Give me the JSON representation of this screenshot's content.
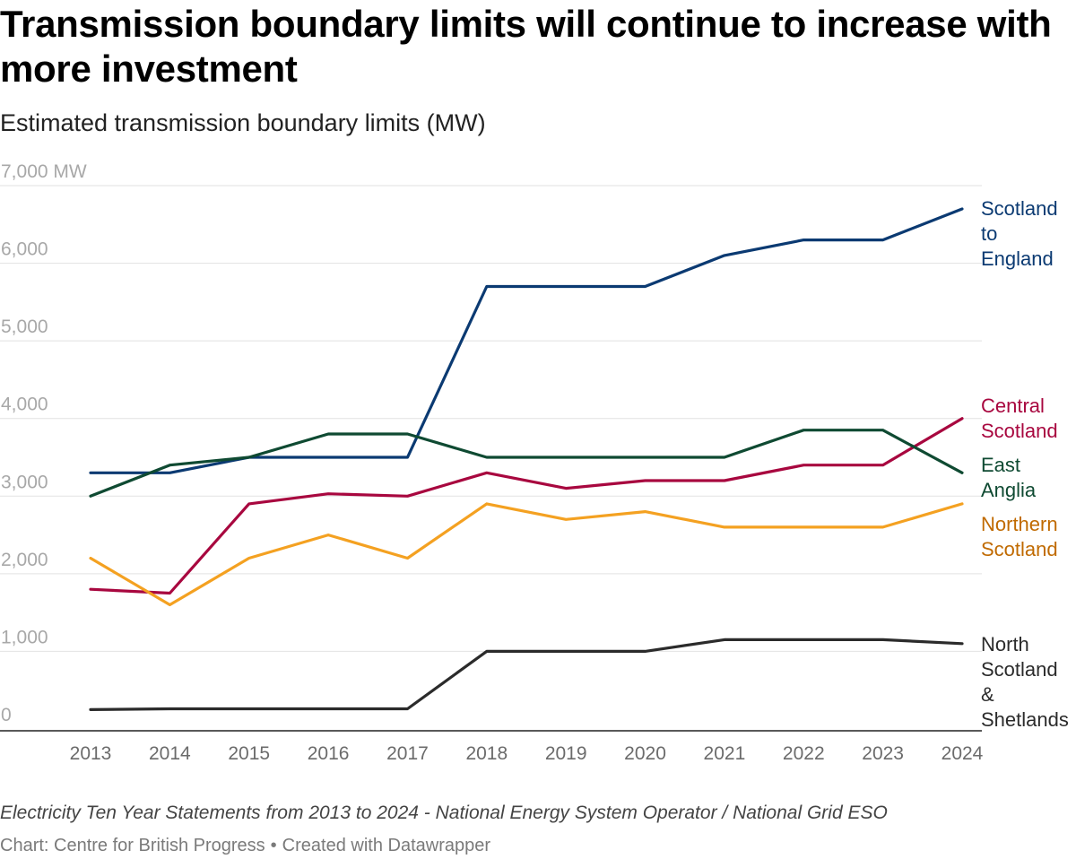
{
  "title": "Transmission boundary limits will continue to increase with more investment",
  "subtitle": "Estimated transmission boundary limits (MW)",
  "footer": {
    "source": "Electricity Ten Year Statements from 2013 to 2024 - National Energy System Operator / National Grid ESO",
    "credit_chart": "Chart: Centre for British Progress",
    "credit_separator": "•",
    "credit_tool": "Created with Datawrapper"
  },
  "chart_data": {
    "type": "line",
    "title": "Transmission boundary limits will continue to increase with more investment",
    "subtitle": "Estimated transmission boundary limits (MW)",
    "xlabel": "",
    "ylabel": "",
    "x": [
      "2013",
      "2014",
      "2015",
      "2016",
      "2017",
      "2018",
      "2019",
      "2020",
      "2021",
      "2022",
      "2023",
      "2024"
    ],
    "ylim": [
      0,
      7000
    ],
    "yticks": [
      0,
      1000,
      2000,
      3000,
      4000,
      5000,
      6000,
      7000
    ],
    "ytick_labels": [
      "0",
      "1,000",
      "2,000",
      "3,000",
      "4,000",
      "5,000",
      "6,000",
      "7,000 MW"
    ],
    "grid": true,
    "legend": "direct labels at right end of lines",
    "series": [
      {
        "name": "Scotland to England",
        "label_lines": [
          "Scotland",
          "to",
          "England"
        ],
        "color": "#0b3a72",
        "values": [
          3300,
          3300,
          3500,
          3500,
          3500,
          5700,
          5700,
          5700,
          6100,
          6300,
          6300,
          6700
        ]
      },
      {
        "name": "Central Scotland",
        "label_lines": [
          "Central",
          "Scotland"
        ],
        "color": "#a8073f",
        "values": [
          1800,
          1750,
          2900,
          3030,
          3000,
          3300,
          3100,
          3200,
          3200,
          3400,
          3400,
          4000
        ]
      },
      {
        "name": "East Anglia",
        "label_lines": [
          "East",
          "Anglia"
        ],
        "color": "#0f4a32",
        "values": [
          3000,
          3400,
          3500,
          3800,
          3800,
          3500,
          3500,
          3500,
          3500,
          3850,
          3850,
          3300
        ]
      },
      {
        "name": "Northern Scotland",
        "label_lines": [
          "Northern",
          "Scotland"
        ],
        "color": "#f4a121",
        "label_color": "#c06a00",
        "values": [
          2200,
          1600,
          2200,
          2500,
          2200,
          2900,
          2700,
          2800,
          2600,
          2600,
          2600,
          2900
        ]
      },
      {
        "name": "North Scotland & Shetlands",
        "label_lines": [
          "North",
          "Scotland",
          "&",
          "Shetlands"
        ],
        "color": "#2b2b2b",
        "values": [
          250,
          260,
          260,
          260,
          260,
          1000,
          1000,
          1000,
          1150,
          1150,
          1150,
          1100
        ]
      }
    ]
  }
}
